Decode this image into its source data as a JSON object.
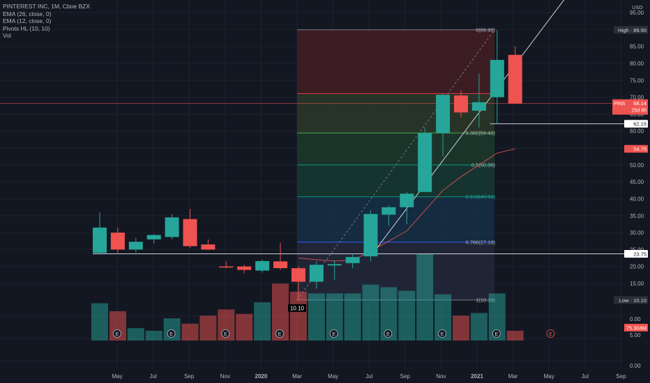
{
  "legend": {
    "symbol": "PINTEREST INC, 1M, Cboe BZX",
    "ema26": "EMA (26, close, 0)",
    "ema12": "EMA (12, close, 0)",
    "pivots": "Pivots HL (10, 10)",
    "vol": "Vol"
  },
  "currency": "USD",
  "colors": {
    "background": "#131722",
    "up": "#26a69a",
    "down": "#ef5350",
    "axis_text": "#b2b5be"
  },
  "chart_data": {
    "type": "candlestick",
    "x_ticks": [
      "May",
      "Jul",
      "Sep",
      "Nov",
      "2020",
      "Mar",
      "May",
      "Jul",
      "Sep",
      "Nov",
      "2021",
      "Mar",
      "May",
      "Jul",
      "Sep"
    ],
    "price_ticks": [
      15,
      20,
      25,
      30,
      35,
      40,
      45,
      50,
      55,
      60,
      65,
      70,
      75,
      80,
      85,
      90,
      95
    ],
    "volume_ticks": [
      "0.00",
      "5.00",
      "0.00"
    ],
    "candles": [
      {
        "o": 24.0,
        "h": 36.0,
        "l": 23.5,
        "c": 31.5,
        "v": 0.42
      },
      {
        "o": 30.0,
        "h": 31.5,
        "l": 24.0,
        "c": 25.0,
        "v": 0.33
      },
      {
        "o": 25.0,
        "h": 28.5,
        "l": 24.2,
        "c": 27.3,
        "v": 0.14
      },
      {
        "o": 28.0,
        "h": 29.5,
        "l": 26.8,
        "c": 29.3,
        "v": 0.11
      },
      {
        "o": 28.7,
        "h": 35.5,
        "l": 28.0,
        "c": 34.5,
        "v": 0.25
      },
      {
        "o": 34.0,
        "h": 37.0,
        "l": 25.5,
        "c": 26.0,
        "v": 0.19
      },
      {
        "o": 26.5,
        "h": 28.0,
        "l": 24.8,
        "c": 25.0,
        "v": 0.28
      },
      {
        "o": 20.0,
        "h": 21.5,
        "l": 19.5,
        "c": 19.8,
        "v": 0.35
      },
      {
        "o": 20.0,
        "h": 20.5,
        "l": 18.0,
        "c": 19.0,
        "v": 0.3
      },
      {
        "o": 18.8,
        "h": 22.0,
        "l": 18.2,
        "c": 21.6,
        "v": 0.43
      },
      {
        "o": 21.5,
        "h": 27.0,
        "l": 19.0,
        "c": 19.5,
        "v": 0.64
      },
      {
        "o": 19.5,
        "h": 20.0,
        "l": 10.1,
        "c": 15.5,
        "v": 0.55
      },
      {
        "o": 15.5,
        "h": 21.5,
        "l": 13.5,
        "c": 20.5,
        "v": 0.53
      },
      {
        "o": 20.3,
        "h": 21.8,
        "l": 16.0,
        "c": 20.7,
        "v": 0.53
      },
      {
        "o": 21.0,
        "h": 23.5,
        "l": 19.5,
        "c": 22.8,
        "v": 0.53
      },
      {
        "o": 23.0,
        "h": 36.5,
        "l": 21.5,
        "c": 35.5,
        "v": 0.63
      },
      {
        "o": 35.3,
        "h": 38.0,
        "l": 32.0,
        "c": 37.5,
        "v": 0.6
      },
      {
        "o": 37.5,
        "h": 42.0,
        "l": 32.5,
        "c": 41.5,
        "v": 0.56
      },
      {
        "o": 42.0,
        "h": 61.0,
        "l": 42.0,
        "c": 59.4,
        "v": 0.98
      },
      {
        "o": 59.4,
        "h": 71.0,
        "l": 52.5,
        "c": 70.7,
        "v": 0.52
      },
      {
        "o": 70.5,
        "h": 72.0,
        "l": 64.0,
        "c": 65.5,
        "v": 0.28
      },
      {
        "o": 66.0,
        "h": 77.0,
        "l": 61.0,
        "c": 68.5,
        "v": 0.31
      },
      {
        "o": 70.0,
        "h": 89.9,
        "l": 62.15,
        "c": 81.0,
        "v": 0.53
      },
      {
        "o": 82.5,
        "h": 85.0,
        "l": 68.0,
        "c": 68.14,
        "v": 0.11
      }
    ],
    "earnings_markers": [
      1,
      4,
      7,
      10,
      13,
      16,
      19,
      22,
      25
    ],
    "earnings_label": "E",
    "fibonacci": {
      "low": 10.1,
      "high": 89.9,
      "levels": [
        {
          "ratio": 0,
          "price": 89.9,
          "label": "0(89.90)"
        },
        {
          "ratio": 0.236,
          "price": 71.07,
          "label": ""
        },
        {
          "ratio": 0.382,
          "price": 59.42,
          "label": "0.382(59.42)"
        },
        {
          "ratio": 0.5,
          "price": 50.0,
          "label": "0.5(50.00)"
        },
        {
          "ratio": 0.618,
          "price": 40.58,
          "label": "0.618(40.58)"
        },
        {
          "ratio": 0.786,
          "price": 27.18,
          "label": "0.786(27.18)"
        },
        {
          "ratio": 1,
          "price": 10.1,
          "label": "1(10.10)"
        }
      ]
    },
    "ema": [
      {
        "i": 11,
        "v": 22.5
      },
      {
        "i": 12,
        "v": 22.0
      },
      {
        "i": 13,
        "v": 21.6
      },
      {
        "i": 14,
        "v": 21.8
      },
      {
        "i": 15,
        "v": 24.5
      },
      {
        "i": 16,
        "v": 27.5
      },
      {
        "i": 17,
        "v": 30.5
      },
      {
        "i": 18,
        "v": 36.5
      },
      {
        "i": 19,
        "v": 42.5
      },
      {
        "i": 20,
        "v": 46.5
      },
      {
        "i": 21,
        "v": 50.0
      },
      {
        "i": 22,
        "v": 53.5
      },
      {
        "i": 23,
        "v": 54.75
      }
    ],
    "trendline": {
      "from": {
        "i": 15,
        "v": 23.0
      },
      "to": {
        "i": 28,
        "v": 115
      }
    },
    "horizontal_lines": [
      {
        "price": 23.75,
        "label": "23.75",
        "from_index": 0
      },
      {
        "price": 62.15,
        "label": "62.15",
        "from_index": 22
      }
    ],
    "badges": {
      "high": {
        "text": "High · 89.90",
        "price": 89.9
      },
      "low": {
        "text": "Low · 10.10",
        "price": 10.1
      },
      "last_price": {
        "symbol": "PINS",
        "value": "68.14",
        "countdown": "25d 8h",
        "price": 68.14
      },
      "ema": {
        "text": "54.75",
        "price": 54.75
      },
      "volume": {
        "text": "75.304M"
      },
      "pivot_low": {
        "text": "10.10",
        "price": 10.1
      }
    }
  }
}
